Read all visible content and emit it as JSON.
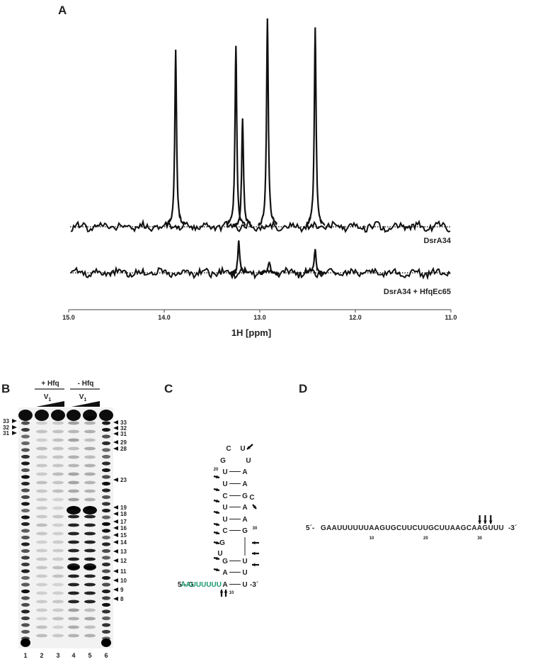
{
  "panel_a": {
    "label": "A",
    "xlabel": "1H [ppm]",
    "xlim": [
      15,
      11
    ],
    "xticks": [
      {
        "value": 15,
        "label": "15.0"
      },
      {
        "value": 14,
        "label": "14.0"
      },
      {
        "value": 13,
        "label": "13.0"
      },
      {
        "value": 12,
        "label": "12.0"
      },
      {
        "value": 11,
        "label": "11.0"
      }
    ],
    "traces": [
      {
        "name": "DsrA34",
        "peaks": [
          {
            "ppm": 13.88,
            "height": 0.83
          },
          {
            "ppm": 13.25,
            "height": 0.86
          },
          {
            "ppm": 13.18,
            "height": 0.51
          },
          {
            "ppm": 12.92,
            "height": 0.98
          },
          {
            "ppm": 12.42,
            "height": 0.93
          }
        ]
      },
      {
        "name": "DsrA34 + HfqEc65",
        "peaks": [
          {
            "ppm": 13.22,
            "height": 0.15
          },
          {
            "ppm": 12.9,
            "height": 0.05
          },
          {
            "ppm": 12.42,
            "height": 0.12
          }
        ]
      }
    ]
  },
  "panel_b": {
    "label": "B",
    "groups": [
      "+ Hfq",
      "- Hfq"
    ],
    "enzyme": "V",
    "enzyme_sub": "1",
    "lanes": [
      "1",
      "2",
      "3",
      "4",
      "5",
      "6"
    ],
    "left_markers": [
      "33",
      "32",
      "31"
    ],
    "right_markers": [
      "33",
      "32",
      "31",
      "29",
      "28",
      "23",
      "19",
      "18",
      "17",
      "16",
      "15",
      "14",
      "13",
      "12",
      "11",
      "10",
      "9",
      "8"
    ]
  },
  "panel_c": {
    "label": "C",
    "loop": [
      "C",
      "U",
      "G",
      "U"
    ],
    "stem_upper": [
      [
        "U",
        "A"
      ],
      [
        "U",
        "A"
      ],
      [
        "C",
        "G"
      ],
      [
        "U",
        "A"
      ],
      [
        "U",
        "A"
      ],
      [
        "C",
        "G"
      ]
    ],
    "bulge_right": "C",
    "bulge_left": [
      "G",
      "U"
    ],
    "stem_lower": [
      [
        "G",
        "U"
      ],
      [
        "A",
        "U"
      ]
    ],
    "five": "5´- G",
    "tail": "AAUUUUUU",
    "closing": [
      "A",
      "U"
    ],
    "three": "-3´",
    "numbers": [
      "20",
      "30",
      "10"
    ]
  },
  "panel_d": {
    "label": "D",
    "five": "5´-",
    "sequence": "GAAUUUUUUAAGUGCUUCUUGCUUAAGCAAGUUU",
    "three": "-3´",
    "positions": [
      10,
      20,
      30
    ]
  }
}
